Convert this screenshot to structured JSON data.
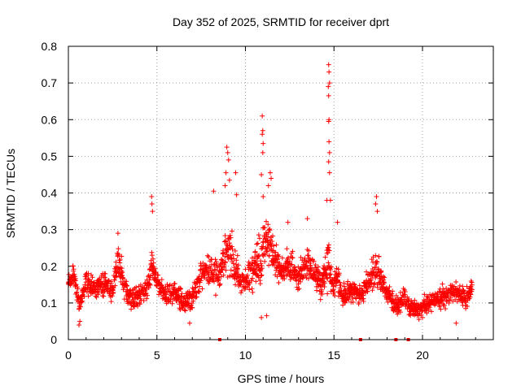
{
  "chart_data": {
    "type": "scatter",
    "title": "Day 352 of 2025, SRMTID for receiver dprt",
    "xlabel": "GPS time / hours",
    "ylabel": "SRMTID / TECUs",
    "xlim": [
      0,
      24
    ],
    "ylim": [
      0,
      0.8
    ],
    "xticks": [
      0,
      5,
      10,
      15,
      20
    ],
    "yticks": [
      0,
      0.1,
      0.2,
      0.3,
      0.4,
      0.5,
      0.6,
      0.7,
      0.8
    ],
    "grid": true,
    "marker": "+",
    "color": "#ff0000",
    "profile_hours": [
      0,
      0.3,
      0.6,
      0.8,
      1,
      1.5,
      2,
      2.5,
      2.8,
      3.2,
      3.5,
      4,
      4.5,
      4.7,
      5,
      5.5,
      6,
      6.5,
      7,
      7.5,
      8,
      8.5,
      8.9,
      9.3,
      9.6,
      10,
      10.5,
      10.9,
      11.2,
      11.5,
      12,
      12.5,
      13,
      13.5,
      14,
      14.3,
      14.7,
      14.9,
      15.2,
      15.5,
      16,
      16.5,
      17,
      17.3,
      17.6,
      18,
      18.5,
      19,
      19.5,
      20,
      20.5,
      21,
      21.5,
      22,
      22.5,
      22.8
    ],
    "profile_median": [
      0.15,
      0.18,
      0.1,
      0.12,
      0.16,
      0.14,
      0.15,
      0.14,
      0.22,
      0.14,
      0.11,
      0.12,
      0.14,
      0.2,
      0.15,
      0.12,
      0.13,
      0.1,
      0.11,
      0.18,
      0.19,
      0.17,
      0.26,
      0.22,
      0.17,
      0.16,
      0.19,
      0.22,
      0.28,
      0.23,
      0.19,
      0.21,
      0.17,
      0.21,
      0.18,
      0.15,
      0.22,
      0.15,
      0.17,
      0.12,
      0.14,
      0.12,
      0.16,
      0.2,
      0.17,
      0.13,
      0.09,
      0.11,
      0.08,
      0.09,
      0.1,
      0.11,
      0.12,
      0.13,
      0.11,
      0.14
    ],
    "profile_spread": [
      0.04,
      0.05,
      0.05,
      0.05,
      0.05,
      0.04,
      0.05,
      0.05,
      0.07,
      0.05,
      0.05,
      0.05,
      0.05,
      0.09,
      0.05,
      0.05,
      0.05,
      0.05,
      0.05,
      0.06,
      0.07,
      0.08,
      0.12,
      0.1,
      0.06,
      0.05,
      0.07,
      0.13,
      0.1,
      0.08,
      0.06,
      0.07,
      0.06,
      0.07,
      0.06,
      0.06,
      0.14,
      0.05,
      0.06,
      0.05,
      0.06,
      0.05,
      0.07,
      0.1,
      0.06,
      0.05,
      0.04,
      0.05,
      0.04,
      0.04,
      0.04,
      0.05,
      0.05,
      0.05,
      0.05,
      0.04
    ],
    "sampling_interval_hours": 0.0167,
    "peaks": [
      {
        "x": 14.7,
        "y": 0.75
      },
      {
        "x": 14.72,
        "y": 0.73
      },
      {
        "x": 14.68,
        "y": 0.69
      },
      {
        "x": 14.75,
        "y": 0.7
      },
      {
        "x": 14.7,
        "y": 0.665
      },
      {
        "x": 14.72,
        "y": 0.6
      },
      {
        "x": 14.7,
        "y": 0.595
      },
      {
        "x": 14.72,
        "y": 0.54
      },
      {
        "x": 14.75,
        "y": 0.51
      },
      {
        "x": 14.7,
        "y": 0.485
      },
      {
        "x": 14.75,
        "y": 0.455
      },
      {
        "x": 10.95,
        "y": 0.61
      },
      {
        "x": 10.98,
        "y": 0.57
      },
      {
        "x": 10.95,
        "y": 0.56
      },
      {
        "x": 11.0,
        "y": 0.535
      },
      {
        "x": 10.98,
        "y": 0.51
      },
      {
        "x": 11.4,
        "y": 0.455
      },
      {
        "x": 11.45,
        "y": 0.44
      },
      {
        "x": 10.9,
        "y": 0.45
      },
      {
        "x": 8.95,
        "y": 0.525
      },
      {
        "x": 9.0,
        "y": 0.51
      },
      {
        "x": 9.05,
        "y": 0.49
      },
      {
        "x": 8.9,
        "y": 0.455
      },
      {
        "x": 9.1,
        "y": 0.435
      },
      {
        "x": 8.85,
        "y": 0.42
      },
      {
        "x": 9.45,
        "y": 0.455
      },
      {
        "x": 8.2,
        "y": 0.405
      },
      {
        "x": 9.5,
        "y": 0.395
      },
      {
        "x": 4.7,
        "y": 0.39
      },
      {
        "x": 4.72,
        "y": 0.37
      },
      {
        "x": 4.75,
        "y": 0.35
      },
      {
        "x": 17.4,
        "y": 0.39
      },
      {
        "x": 17.35,
        "y": 0.37
      },
      {
        "x": 17.45,
        "y": 0.35
      },
      {
        "x": 13.5,
        "y": 0.33
      },
      {
        "x": 12.4,
        "y": 0.32
      },
      {
        "x": 15.2,
        "y": 0.32
      },
      {
        "x": 2.8,
        "y": 0.29
      },
      {
        "x": 14.6,
        "y": 0.38
      },
      {
        "x": 14.8,
        "y": 0.38
      },
      {
        "x": 11.3,
        "y": 0.42
      },
      {
        "x": 11.0,
        "y": 0.39
      }
    ],
    "lows": [
      {
        "x": 0.6,
        "y": 0.04
      },
      {
        "x": 0.65,
        "y": 0.05
      },
      {
        "x": 6.85,
        "y": 0.045
      },
      {
        "x": 21.9,
        "y": 0.045
      },
      {
        "x": 20.0,
        "y": 0.06
      },
      {
        "x": 10.9,
        "y": 0.06
      },
      {
        "x": 11.2,
        "y": 0.065
      },
      {
        "x": 19.8,
        "y": 0.055
      }
    ],
    "gap_markers_x": [
      8.55,
      16.5,
      18.5,
      19.2
    ],
    "gap_marker_y": 0
  }
}
